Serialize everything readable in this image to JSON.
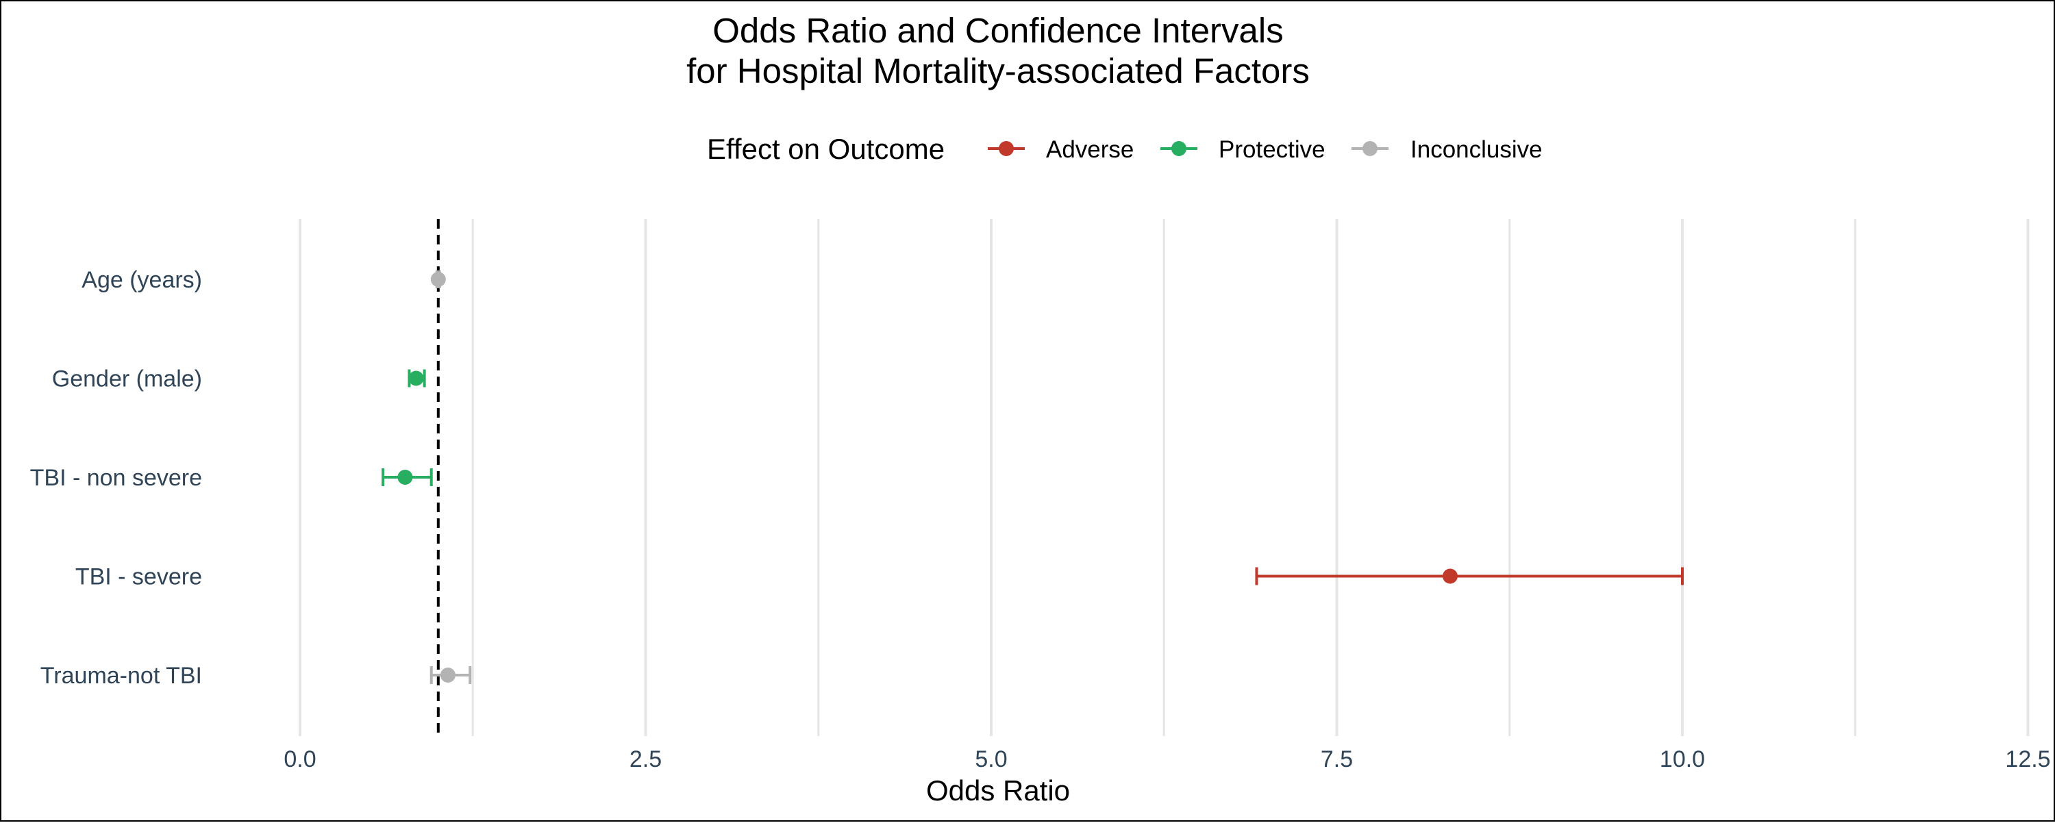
{
  "chart_data": {
    "type": "forest",
    "title_lines": [
      "Odds Ratio and Confidence Intervals",
      "for Hospital Mortality-associated Factors"
    ],
    "xlabel": "Odds Ratio",
    "ylabel": "",
    "xlim": [
      -0.5,
      12.6
    ],
    "x_ticks": [
      0.0,
      2.5,
      5.0,
      7.5,
      10.0,
      12.5
    ],
    "x_tick_labels": [
      "0.0",
      "2.5",
      "5.0",
      "7.5",
      "10.0",
      "12.5"
    ],
    "reference_line": 1.0,
    "grid": true,
    "legend": {
      "title": "Effect on Outcome",
      "placement": "top",
      "entries": [
        {
          "label": "Adverse",
          "color": "#c0392b"
        },
        {
          "label": "Protective",
          "color": "#27ae60"
        },
        {
          "label": "Inconclusive",
          "color": "#b3b3b3"
        }
      ]
    },
    "rows": [
      {
        "label": "Age (years)",
        "or": 1.0,
        "lower": 0.99,
        "upper": 1.01,
        "effect": "Inconclusive"
      },
      {
        "label": "Gender (male)",
        "or": 0.84,
        "lower": 0.79,
        "upper": 0.9,
        "effect": "Protective"
      },
      {
        "label": "TBI - non severe",
        "or": 0.76,
        "lower": 0.6,
        "upper": 0.95,
        "effect": "Protective"
      },
      {
        "label": "TBI - severe",
        "or": 8.32,
        "lower": 6.92,
        "upper": 10.0,
        "effect": "Adverse"
      },
      {
        "label": "Trauma-not TBI",
        "or": 1.07,
        "lower": 0.95,
        "upper": 1.23,
        "effect": "Inconclusive"
      }
    ]
  }
}
